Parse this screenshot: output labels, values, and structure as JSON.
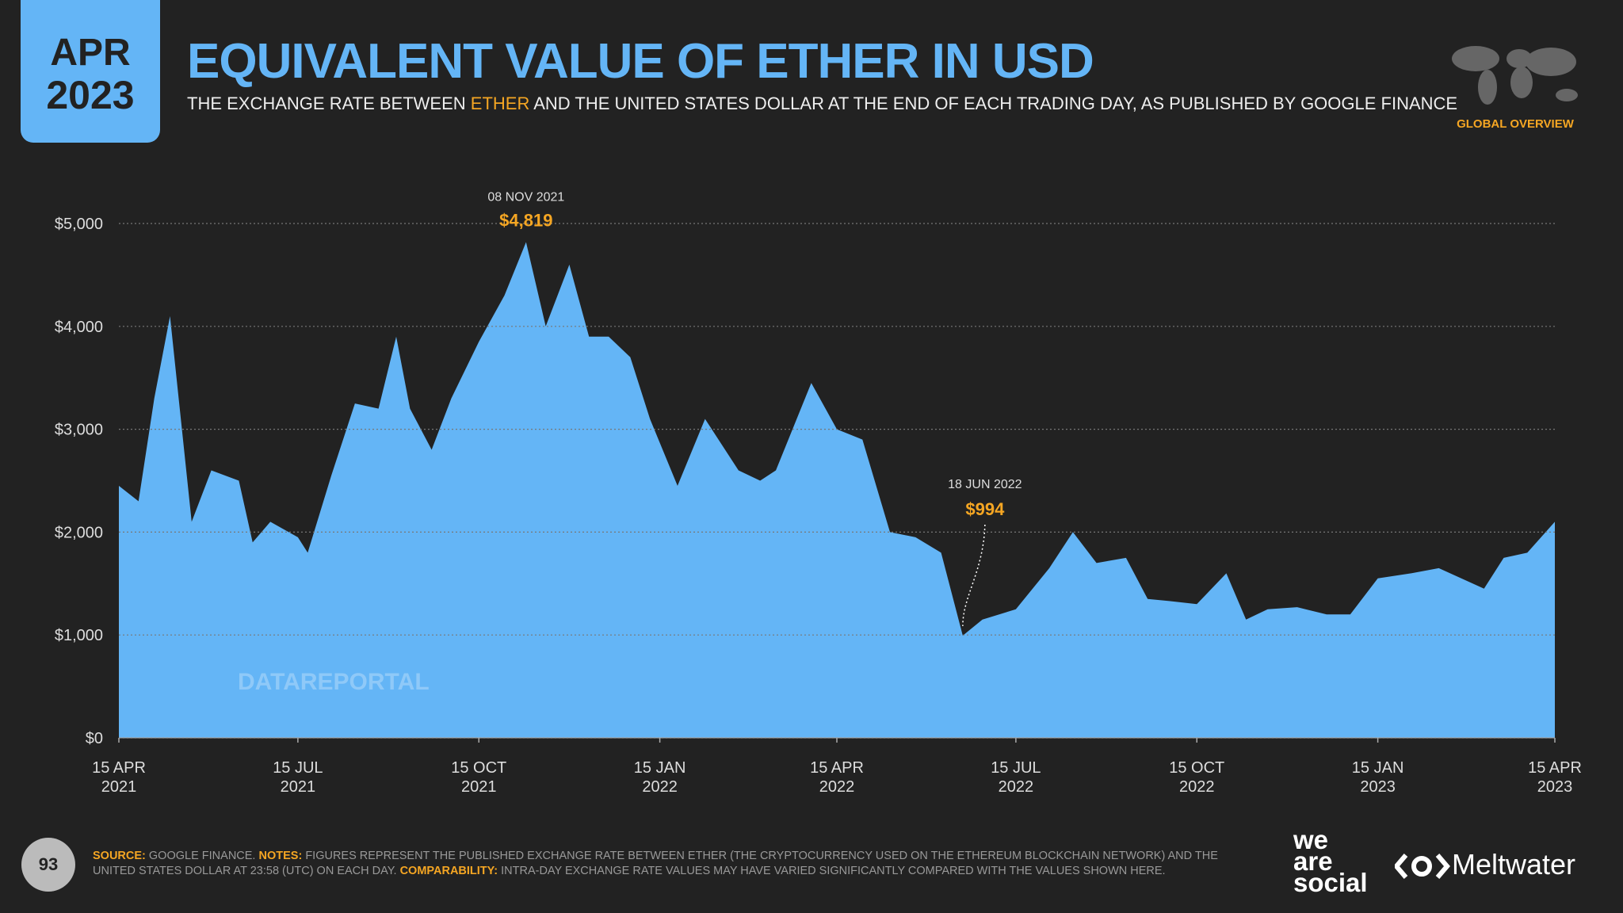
{
  "header": {
    "badge_month": "APR",
    "badge_year": "2023",
    "title": "EQUIVALENT VALUE OF ETHER IN USD",
    "subtitle_before": "THE EXCHANGE RATE BETWEEN",
    "subtitle_highlight": "ETHER",
    "subtitle_after": "AND THE UNITED STATES DOLLAR AT THE END OF EACH TRADING DAY, AS PUBLISHED BY GOOGLE FINANCE",
    "section": "GLOBAL OVERVIEW"
  },
  "chart_data": {
    "type": "area",
    "color": "#64b5f6",
    "watermark": "DATAREPORTAL",
    "x": [
      "2021-04-15",
      "2021-04-25",
      "2021-05-03",
      "2021-05-11",
      "2021-05-22",
      "2021-06-01",
      "2021-06-15",
      "2021-06-22",
      "2021-07-01",
      "2021-07-15",
      "2021-07-20",
      "2021-08-01",
      "2021-08-13",
      "2021-08-25",
      "2021-09-03",
      "2021-09-10",
      "2021-09-21",
      "2021-10-01",
      "2021-10-15",
      "2021-10-28",
      "2021-11-08",
      "2021-11-18",
      "2021-11-30",
      "2021-12-10",
      "2021-12-20",
      "2021-12-31",
      "2022-01-10",
      "2022-01-24",
      "2022-02-07",
      "2022-02-24",
      "2022-03-07",
      "2022-03-15",
      "2022-04-02",
      "2022-04-15",
      "2022-04-28",
      "2022-05-12",
      "2022-05-25",
      "2022-06-07",
      "2022-06-18",
      "2022-06-28",
      "2022-07-15",
      "2022-08-01",
      "2022-08-13",
      "2022-08-25",
      "2022-09-09",
      "2022-09-20",
      "2022-10-01",
      "2022-10-15",
      "2022-10-30",
      "2022-11-09",
      "2022-11-20",
      "2022-12-05",
      "2022-12-20",
      "2023-01-01",
      "2023-01-15",
      "2023-02-01",
      "2023-02-15",
      "2023-03-10",
      "2023-03-20",
      "2023-04-01",
      "2023-04-15"
    ],
    "values": [
      2450,
      2300,
      3300,
      4100,
      2100,
      2600,
      2500,
      1900,
      2100,
      1950,
      1800,
      2550,
      3250,
      3200,
      3900,
      3200,
      2800,
      3300,
      3850,
      4300,
      4819,
      4000,
      4600,
      3900,
      3900,
      3700,
      3100,
      2450,
      3100,
      2600,
      2500,
      2600,
      3450,
      3000,
      2900,
      2000,
      1950,
      1800,
      994,
      1150,
      1250,
      1650,
      2000,
      1700,
      1750,
      1350,
      1330,
      1300,
      1600,
      1150,
      1250,
      1270,
      1200,
      1200,
      1550,
      1600,
      1650,
      1450,
      1750,
      1800,
      2100
    ],
    "xlim": [
      "2021-04-15",
      "2023-04-15"
    ],
    "xticks": [
      {
        "value": "2021-04-15",
        "label": "15 APR 2021"
      },
      {
        "value": "2021-07-15",
        "label": "15 JUL 2021"
      },
      {
        "value": "2021-10-15",
        "label": "15 OCT 2021"
      },
      {
        "value": "2022-01-15",
        "label": "15 JAN 2022"
      },
      {
        "value": "2022-04-15",
        "label": "15 APR 2022"
      },
      {
        "value": "2022-07-15",
        "label": "15 JUL 2022"
      },
      {
        "value": "2022-10-15",
        "label": "15 OCT 2022"
      },
      {
        "value": "2023-01-15",
        "label": "15 JAN 2023"
      },
      {
        "value": "2023-04-15",
        "label": "15 APR 2023"
      }
    ],
    "ylim": [
      0,
      5000
    ],
    "yticks": [
      {
        "value": 0,
        "label": "$0"
      },
      {
        "value": 1000,
        "label": "$1,000"
      },
      {
        "value": 2000,
        "label": "$2,000"
      },
      {
        "value": 3000,
        "label": "$3,000"
      },
      {
        "value": 4000,
        "label": "$4,000"
      },
      {
        "value": 5000,
        "label": "$5,000"
      }
    ],
    "grid": true,
    "annotations": [
      {
        "x": "2021-11-08",
        "date_label": "08 NOV 2021",
        "value": 4819,
        "value_label": "$4,819",
        "style": "top"
      },
      {
        "x": "2022-06-18",
        "date_label": "18 JUN 2022",
        "value": 994,
        "value_label": "$994",
        "style": "callout"
      }
    ]
  },
  "footer": {
    "page": "93",
    "source_label": "SOURCE:",
    "source": "GOOGLE FINANCE.",
    "notes_label": "NOTES:",
    "notes": "FIGURES REPRESENT THE PUBLISHED EXCHANGE RATE BETWEEN ETHER (THE CRYPTOCURRENCY USED ON THE ETHEREUM BLOCKCHAIN NETWORK) AND THE UNITED STATES DOLLAR AT 23:58 (UTC) ON EACH DAY.",
    "comparability_label": "COMPARABILITY:",
    "comparability": "INTRA-DAY EXCHANGE RATE VALUES MAY HAVE VARIED SIGNIFICANTLY COMPARED WITH THE VALUES SHOWN HERE.",
    "brand_1": "we",
    "brand_2": "are",
    "brand_3": "social",
    "brand_4": "Meltwater"
  }
}
